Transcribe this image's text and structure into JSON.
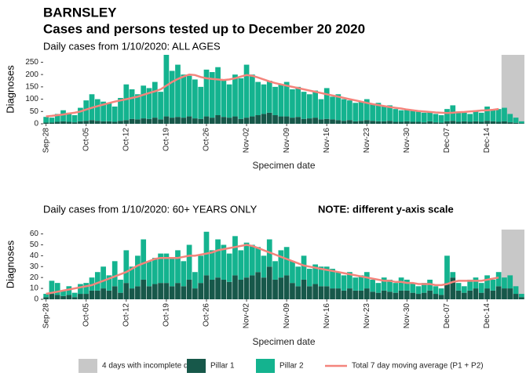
{
  "header": {
    "title": "BARNSLEY",
    "subtitle": "Cases and persons tested up to December 20 2020"
  },
  "shade": {
    "label": "4 days with incomplete data",
    "color": "#c8c8c8",
    "days": 4
  },
  "chart_data": [
    {
      "type": "bar",
      "stacked": true,
      "title": "Daily cases from 1/10/2020: ALL AGES",
      "x_label": "Specimen date",
      "y_label": "Diagnoses",
      "categories": [
        "Sep-28",
        null,
        null,
        null,
        null,
        null,
        null,
        "Oct-05",
        null,
        null,
        null,
        null,
        null,
        null,
        "Oct-12",
        null,
        null,
        null,
        null,
        null,
        null,
        "Oct-19",
        null,
        null,
        null,
        null,
        null,
        null,
        "Oct-26",
        null,
        null,
        null,
        null,
        null,
        null,
        "Nov-02",
        null,
        null,
        null,
        null,
        null,
        null,
        "Nov-09",
        null,
        null,
        null,
        null,
        null,
        null,
        "Nov-16",
        null,
        null,
        null,
        null,
        null,
        null,
        "Nov-23",
        null,
        null,
        null,
        null,
        null,
        null,
        "Nov-30",
        null,
        null,
        null,
        null,
        null,
        null,
        "Dec-07",
        null,
        null,
        null,
        null,
        null,
        null,
        "Dec-14",
        null,
        null,
        null,
        null,
        null,
        null
      ],
      "ylim": [
        0,
        280
      ],
      "yticks": [
        0,
        50,
        100,
        150,
        200,
        250
      ],
      "series": [
        {
          "name": "Pillar 1",
          "color": "#17584a",
          "values": [
            5,
            5,
            8,
            10,
            8,
            6,
            10,
            12,
            15,
            12,
            10,
            10,
            8,
            12,
            15,
            20,
            18,
            22,
            20,
            25,
            18,
            30,
            25,
            28,
            25,
            30,
            22,
            20,
            30,
            25,
            35,
            28,
            25,
            30,
            20,
            25,
            30,
            35,
            40,
            45,
            35,
            30,
            30,
            25,
            28,
            20,
            22,
            25,
            18,
            20,
            18,
            15,
            12,
            15,
            10,
            12,
            15,
            12,
            10,
            10,
            12,
            8,
            8,
            10,
            8,
            8,
            6,
            10,
            6,
            5,
            10,
            12,
            8,
            10,
            8,
            10,
            8,
            12,
            10,
            8,
            10,
            6,
            4,
            2
          ]
        },
        {
          "name": "Pillar 2",
          "color": "#14b38f",
          "values": [
            23,
            20,
            32,
            45,
            37,
            29,
            55,
            83,
            105,
            88,
            80,
            75,
            62,
            93,
            145,
            120,
            102,
            133,
            125,
            145,
            112,
            250,
            190,
            212,
            175,
            165,
            158,
            130,
            190,
            185,
            195,
            147,
            135,
            170,
            165,
            215,
            170,
            135,
            120,
            130,
            115,
            130,
            140,
            115,
            122,
            110,
            98,
            110,
            82,
            125,
            92,
            105,
            88,
            80,
            75,
            78,
            85,
            68,
            75,
            60,
            63,
            52,
            47,
            50,
            47,
            42,
            39,
            40,
            34,
            30,
            50,
            63,
            42,
            35,
            32,
            40,
            37,
            58,
            45,
            52,
            55,
            34,
            21,
            8
          ]
        },
        {
          "name": "Total 7 day moving average (P1 + P2)",
          "color": "#f4847c",
          "type": "line",
          "values": [
            30,
            32,
            35,
            38,
            42,
            45,
            50,
            58,
            65,
            72,
            78,
            84,
            90,
            95,
            100,
            105,
            110,
            118,
            125,
            132,
            140,
            155,
            170,
            182,
            192,
            200,
            198,
            190,
            185,
            182,
            180,
            178,
            180,
            185,
            192,
            198,
            195,
            188,
            180,
            172,
            165,
            160,
            155,
            150,
            145,
            140,
            135,
            130,
            125,
            120,
            115,
            110,
            105,
            100,
            95,
            90,
            85,
            80,
            76,
            72,
            68,
            65,
            62,
            58,
            55,
            52,
            50,
            48,
            46,
            45,
            44,
            45,
            47,
            48,
            50,
            52,
            54,
            55,
            57,
            60,
            null,
            null,
            null,
            null
          ]
        }
      ]
    },
    {
      "type": "bar",
      "stacked": true,
      "title": "Daily cases from 1/10/2020: 60+ YEARS ONLY",
      "note": "NOTE: different y-axis scale",
      "x_label": "Specimen date",
      "y_label": "Diagnoses",
      "categories": [
        "Sep-28",
        null,
        null,
        null,
        null,
        null,
        null,
        "Oct-05",
        null,
        null,
        null,
        null,
        null,
        null,
        "Oct-12",
        null,
        null,
        null,
        null,
        null,
        null,
        "Oct-19",
        null,
        null,
        null,
        null,
        null,
        null,
        "Oct-26",
        null,
        null,
        null,
        null,
        null,
        null,
        "Nov-02",
        null,
        null,
        null,
        null,
        null,
        null,
        "Nov-09",
        null,
        null,
        null,
        null,
        null,
        null,
        "Nov-16",
        null,
        null,
        null,
        null,
        null,
        null,
        "Nov-23",
        null,
        null,
        null,
        null,
        null,
        null,
        "Nov-30",
        null,
        null,
        null,
        null,
        null,
        null,
        "Dec-07",
        null,
        null,
        null,
        null,
        null,
        null,
        "Dec-14",
        null,
        null,
        null,
        null,
        null,
        null
      ],
      "ylim": [
        0,
        64
      ],
      "yticks": [
        0,
        10,
        20,
        30,
        40,
        50,
        60
      ],
      "series": [
        {
          "name": "Pillar 1",
          "color": "#17584a",
          "values": [
            2,
            5,
            4,
            3,
            4,
            2,
            5,
            5,
            8,
            8,
            10,
            8,
            12,
            6,
            15,
            10,
            12,
            18,
            12,
            14,
            15,
            15,
            12,
            15,
            12,
            18,
            10,
            15,
            22,
            18,
            20,
            18,
            16,
            22,
            18,
            20,
            22,
            25,
            20,
            30,
            18,
            20,
            22,
            15,
            12,
            18,
            12,
            14,
            12,
            12,
            10,
            10,
            8,
            10,
            8,
            8,
            10,
            7,
            6,
            8,
            7,
            6,
            8,
            8,
            6,
            5,
            6,
            8,
            5,
            4,
            15,
            20,
            8,
            6,
            8,
            10,
            6,
            10,
            8,
            12,
            10,
            10,
            5,
            2
          ]
        },
        {
          "name": "Pillar 2",
          "color": "#14b38f",
          "values": [
            3,
            12,
            11,
            5,
            8,
            4,
            9,
            10,
            12,
            17,
            20,
            14,
            23,
            12,
            30,
            20,
            28,
            37,
            23,
            24,
            27,
            27,
            26,
            30,
            23,
            32,
            15,
            25,
            40,
            27,
            35,
            32,
            26,
            36,
            27,
            32,
            28,
            23,
            20,
            25,
            17,
            25,
            26,
            20,
            18,
            22,
            16,
            18,
            18,
            18,
            18,
            15,
            14,
            15,
            12,
            14,
            15,
            11,
            9,
            12,
            11,
            9,
            12,
            10,
            9,
            7,
            9,
            10,
            7,
            6,
            25,
            5,
            7,
            6,
            10,
            10,
            9,
            12,
            10,
            13,
            10,
            12,
            7,
            3
          ]
        },
        {
          "name": "Total 7 day moving average (P1 + P2)",
          "color": "#f4847c",
          "type": "line",
          "values": [
            5,
            6,
            7,
            8,
            9,
            10,
            11,
            12,
            13,
            15,
            17,
            19,
            21,
            23,
            25,
            28,
            31,
            33,
            35,
            37,
            38,
            38,
            38,
            38,
            39,
            40,
            40,
            41,
            42,
            43,
            45,
            46,
            47,
            48,
            49,
            50,
            49,
            47,
            45,
            43,
            41,
            39,
            37,
            35,
            33,
            31,
            30,
            29,
            28,
            27,
            26,
            25,
            24,
            23,
            22,
            21,
            20,
            19,
            18,
            17,
            17,
            16,
            16,
            15,
            15,
            14,
            14,
            14,
            13,
            13,
            14,
            16,
            17,
            17,
            17,
            17,
            17,
            18,
            19,
            20,
            null,
            null,
            null,
            null
          ]
        }
      ]
    }
  ]
}
